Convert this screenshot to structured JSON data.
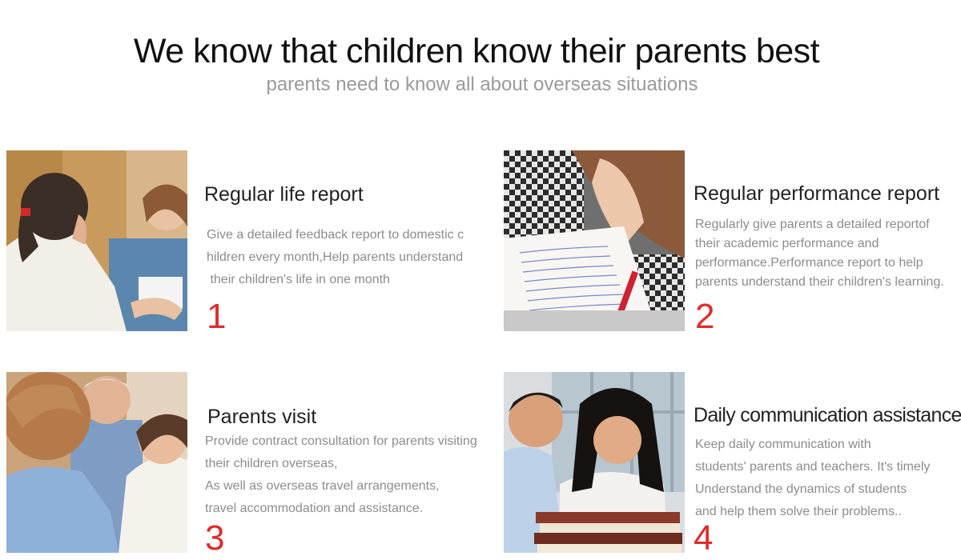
{
  "header": {
    "title": "We know that children know their parents best",
    "subtitle": "parents need to know all about overseas situations"
  },
  "features": [
    {
      "title": "Regular life report",
      "lines": [
        "Give a detailed feedback report to domestic c",
        "hildren every month,Help parents understand",
        " their children's life in one month"
      ],
      "number": "1",
      "image_icon": "mother-and-teacher-photo"
    },
    {
      "title": "Regular performance report",
      "lines": [
        "Regularly give parents a detailed reportof",
        "their academic performance and",
        "performance.Performance report to help",
        "parents understand their children's learning."
      ],
      "number": "2",
      "image_icon": "student-writing-photo"
    },
    {
      "title": "Parents visit",
      "lines": [
        "Provide contract consultation for parents visiting",
        "their children overseas,",
        "As well as overseas travel arrangements,",
        "travel accommodation and assistance."
      ],
      "number": "3",
      "image_icon": "parents-meeting-photo"
    },
    {
      "title": "Daily communication assistance",
      "lines": [
        "Keep daily communication with",
        "students' parents and teachers. It's timely",
        "Understand the dynamics of students",
        "and help them solve their problems.."
      ],
      "number": "4",
      "image_icon": "students-with-books-photo"
    }
  ],
  "colors": {
    "accent": "#e02b2b",
    "title": "#111111",
    "muted": "#8c8c8c"
  }
}
